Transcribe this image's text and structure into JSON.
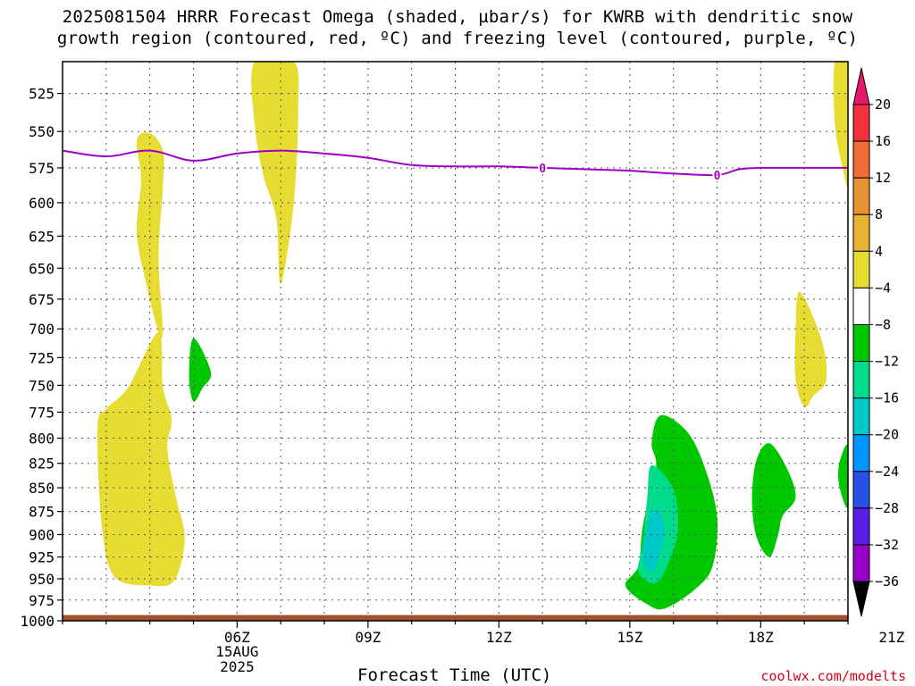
{
  "chart_data": {
    "type": "heatmap",
    "title_line1": "2025081504 HRRR Forecast Omega (shaded, µbar/s) for KWRB with dendritic snow",
    "title_line2": "growth region (contoured, red, ºC) and freezing level (contoured, purple, ºC)",
    "xlabel": "Forecast Time (UTC)",
    "credit": "coolwx.com/modelts",
    "x_ticks": [
      {
        "label": "06Z",
        "hour": 6
      },
      {
        "label": "09Z",
        "hour": 9
      },
      {
        "label": "12Z",
        "hour": 12
      },
      {
        "label": "15Z",
        "hour": 15
      },
      {
        "label": "18Z",
        "hour": 18
      },
      {
        "label": "21Z",
        "hour": 21
      }
    ],
    "date_label": {
      "day": "15AUG",
      "year": "2025"
    },
    "xlim": [
      2.0,
      20.0
    ],
    "y_ticks": [
      525,
      550,
      575,
      600,
      625,
      650,
      675,
      700,
      725,
      750,
      775,
      800,
      825,
      850,
      875,
      900,
      925,
      950,
      975,
      1000
    ],
    "ylim": [
      505,
      1000
    ],
    "y_scale": "log",
    "grid": true,
    "colorbar": {
      "levels": [
        {
          "label": "20",
          "color": "#f0323c"
        },
        {
          "label": "16",
          "color": "#f06e32"
        },
        {
          "label": "12",
          "color": "#e69132"
        },
        {
          "label": "8",
          "color": "#e6b432"
        },
        {
          "label": "4",
          "color": "#e6dc32"
        },
        {
          "label": "−4",
          "color": "#ffffff"
        },
        {
          "label": "−8",
          "color": "#00c800"
        },
        {
          "label": "−12",
          "color": "#00dc8c"
        },
        {
          "label": "−16",
          "color": "#00c8c8"
        },
        {
          "label": "−20",
          "color": "#0096ff"
        },
        {
          "label": "−24",
          "color": "#2850e6"
        },
        {
          "label": "−28",
          "color": "#5a1ee6"
        },
        {
          "label": "−32",
          "color": "#9600c8"
        },
        {
          "label": "−36",
          "color": "#a0a0a0"
        }
      ],
      "top_color": "#e6186e",
      "bottom_color": "#000000"
    },
    "freezing_level": {
      "color": "#9e00c8",
      "contour_label": "0",
      "points": [
        [
          2.0,
          563
        ],
        [
          3.0,
          567
        ],
        [
          4.0,
          563
        ],
        [
          5.0,
          570
        ],
        [
          6.0,
          565
        ],
        [
          7.0,
          563
        ],
        [
          8.0,
          565
        ],
        [
          9.0,
          568
        ],
        [
          10.0,
          573
        ],
        [
          11.0,
          574
        ],
        [
          12.0,
          574
        ],
        [
          13.0,
          575
        ],
        [
          14.0,
          576
        ],
        [
          15.0,
          577
        ],
        [
          16.0,
          579
        ],
        [
          17.0,
          580
        ],
        [
          17.5,
          576
        ],
        [
          18.0,
          575
        ],
        [
          19.0,
          575
        ],
        [
          20.0,
          575
        ]
      ],
      "label_positions": [
        13.0,
        17.0
      ]
    },
    "omega_regions": [
      {
        "value_class": "4 to 8 (upward)",
        "color": "#e6dc32",
        "points": [
          [
            3.7,
            556
          ],
          [
            4.0,
            551
          ],
          [
            4.3,
            563
          ],
          [
            4.3,
            588
          ],
          [
            4.2,
            642
          ],
          [
            4.3,
            700
          ],
          [
            4.2,
            703
          ],
          [
            3.9,
            660
          ],
          [
            3.7,
            622
          ],
          [
            3.8,
            583
          ]
        ]
      },
      {
        "value_class": "4 to 8 (upward)",
        "color": "#e6dc32",
        "points": [
          [
            4.2,
            703
          ],
          [
            4.3,
            752
          ],
          [
            4.5,
            782
          ],
          [
            4.4,
            810
          ],
          [
            4.6,
            860
          ],
          [
            4.8,
            900
          ],
          [
            4.7,
            935
          ],
          [
            4.5,
            955
          ],
          [
            4.1,
            958
          ],
          [
            3.2,
            948
          ],
          [
            2.9,
            890
          ],
          [
            2.8,
            790
          ],
          [
            3.0,
            772
          ],
          [
            3.5,
            752
          ]
        ]
      },
      {
        "value_class": "4 to 8 (upward)",
        "color": "#e6dc32",
        "points": [
          [
            6.4,
            505
          ],
          [
            7.3,
            505
          ],
          [
            7.4,
            535
          ],
          [
            7.3,
            600
          ],
          [
            7.0,
            663
          ],
          [
            6.9,
            612
          ],
          [
            6.6,
            580
          ],
          [
            6.4,
            545
          ]
        ]
      },
      {
        "value_class": "4 to 8 (upward)",
        "color": "#e6dc32",
        "points": [
          [
            19.7,
            505
          ],
          [
            20.0,
            505
          ],
          [
            20.0,
            582
          ],
          [
            19.9,
            578
          ],
          [
            19.7,
            545
          ]
        ]
      },
      {
        "value_class": "4 to 8 (upward)",
        "color": "#e6dc32",
        "points": [
          [
            18.9,
            669
          ],
          [
            19.4,
            710
          ],
          [
            19.5,
            745
          ],
          [
            19.2,
            760
          ],
          [
            19.0,
            770
          ],
          [
            18.8,
            745
          ],
          [
            18.8,
            700
          ]
        ]
      },
      {
        "value_class": "-4 to -8 (downward)",
        "color": "#00c800",
        "points": [
          [
            5.0,
            708
          ],
          [
            5.4,
            738
          ],
          [
            5.2,
            753
          ],
          [
            5.0,
            765
          ],
          [
            4.9,
            742
          ]
        ]
      },
      {
        "value_class": "-4 to -8 (downward)",
        "color": "#00c800",
        "points": [
          [
            15.7,
            778
          ],
          [
            16.3,
            793
          ],
          [
            16.7,
            827
          ],
          [
            17.0,
            880
          ],
          [
            16.9,
            935
          ],
          [
            16.5,
            962
          ],
          [
            15.8,
            985
          ],
          [
            15.4,
            980
          ],
          [
            14.9,
            958
          ],
          [
            15.2,
            935
          ],
          [
            15.3,
            890
          ],
          [
            15.6,
            830
          ],
          [
            15.5,
            805
          ]
        ]
      },
      {
        "value_class": "-4 to -8 (downward)",
        "color": "#00c800",
        "points": [
          [
            18.2,
            805
          ],
          [
            18.6,
            830
          ],
          [
            18.8,
            860
          ],
          [
            18.5,
            880
          ],
          [
            18.4,
            900
          ],
          [
            18.2,
            925
          ],
          [
            17.9,
            902
          ],
          [
            17.8,
            862
          ],
          [
            17.9,
            822
          ]
        ]
      },
      {
        "value_class": "-4 to -8 (downward)",
        "color": "#00c800",
        "points": [
          [
            20.0,
            808
          ],
          [
            19.8,
            825
          ],
          [
            19.8,
            848
          ],
          [
            20.0,
            870
          ]
        ]
      },
      {
        "value_class": "-8 to -12 (downward)",
        "color": "#00dc8c",
        "points": [
          [
            15.5,
            827
          ],
          [
            16.0,
            852
          ],
          [
            16.1,
            895
          ],
          [
            15.9,
            930
          ],
          [
            15.6,
            955
          ],
          [
            15.2,
            942
          ],
          [
            15.3,
            910
          ],
          [
            15.4,
            860
          ]
        ]
      },
      {
        "value_class": "-12 to -16 (downward)",
        "color": "#00c8c8",
        "points": [
          [
            15.6,
            872
          ],
          [
            15.8,
            893
          ],
          [
            15.7,
            920
          ],
          [
            15.5,
            942
          ],
          [
            15.3,
            922
          ],
          [
            15.4,
            888
          ]
        ]
      }
    ],
    "surface_band": {
      "color": "#a0522d",
      "top_pressure": 993
    }
  }
}
